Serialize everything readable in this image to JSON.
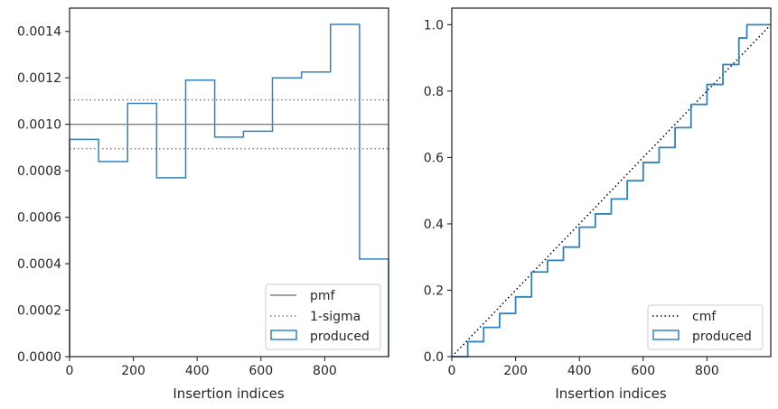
{
  "chart_data": [
    {
      "type": "step",
      "xlabel": "Insertion indices",
      "ylabel": "",
      "xlim": [
        0,
        1000
      ],
      "ylim": [
        0,
        0.0015
      ],
      "xticks": [
        0,
        200,
        400,
        600,
        800
      ],
      "xtick_labels": [
        "0",
        "200",
        "400",
        "600",
        "800"
      ],
      "yticks": [
        0,
        0.0002,
        0.0004,
        0.0006,
        0.0008,
        0.001,
        0.0012,
        0.0014
      ],
      "ytick_labels": [
        "0.0000",
        "0.0002",
        "0.0004",
        "0.0006",
        "0.0008",
        "0.0010",
        "0.0012",
        "0.0014"
      ],
      "legend_position": "lower-right",
      "series": [
        {
          "name": "produced",
          "kind": "step-hist",
          "color": "#3182bd",
          "bin_edges": [
            0,
            91,
            182,
            273,
            364,
            455,
            545,
            636,
            727,
            818,
            909,
            1000
          ],
          "values": [
            0.000935,
            0.00084,
            0.00109,
            0.00077,
            0.00119,
            0.000945,
            0.00097,
            0.0012,
            0.001225,
            0.00143,
            0.00042
          ]
        },
        {
          "name": "pmf",
          "kind": "hline",
          "color": "#808080",
          "y": 0.001
        },
        {
          "name": "1-sigma",
          "kind": "hline-pair",
          "color": "#808080",
          "y": [
            0.000895,
            0.001105
          ]
        }
      ]
    },
    {
      "type": "line",
      "xlabel": "Insertion indices",
      "ylabel": "",
      "xlim": [
        0,
        1000
      ],
      "ylim": [
        0,
        1.05
      ],
      "xticks": [
        0,
        200,
        400,
        600,
        800
      ],
      "xtick_labels": [
        "0",
        "200",
        "400",
        "600",
        "800"
      ],
      "yticks": [
        0,
        0.2,
        0.4,
        0.6,
        0.8,
        1.0
      ],
      "ytick_labels": [
        "0.0",
        "0.2",
        "0.4",
        "0.6",
        "0.8",
        "1.0"
      ],
      "legend_position": "lower-right",
      "series": [
        {
          "name": "cmf",
          "kind": "dotted-line",
          "color": "#000000",
          "x": [
            0,
            1000
          ],
          "y": [
            0,
            1.0
          ]
        },
        {
          "name": "produced",
          "kind": "step-line",
          "color": "#3182bd",
          "x": [
            0,
            50,
            100,
            150,
            200,
            250,
            300,
            350,
            400,
            450,
            500,
            550,
            600,
            650,
            700,
            750,
            800,
            850,
            900,
            925,
            1000
          ],
          "y": [
            0,
            0.045,
            0.088,
            0.13,
            0.18,
            0.255,
            0.29,
            0.33,
            0.39,
            0.43,
            0.475,
            0.53,
            0.585,
            0.63,
            0.69,
            0.76,
            0.82,
            0.88,
            0.96,
            1.0,
            1.0
          ]
        }
      ]
    }
  ]
}
